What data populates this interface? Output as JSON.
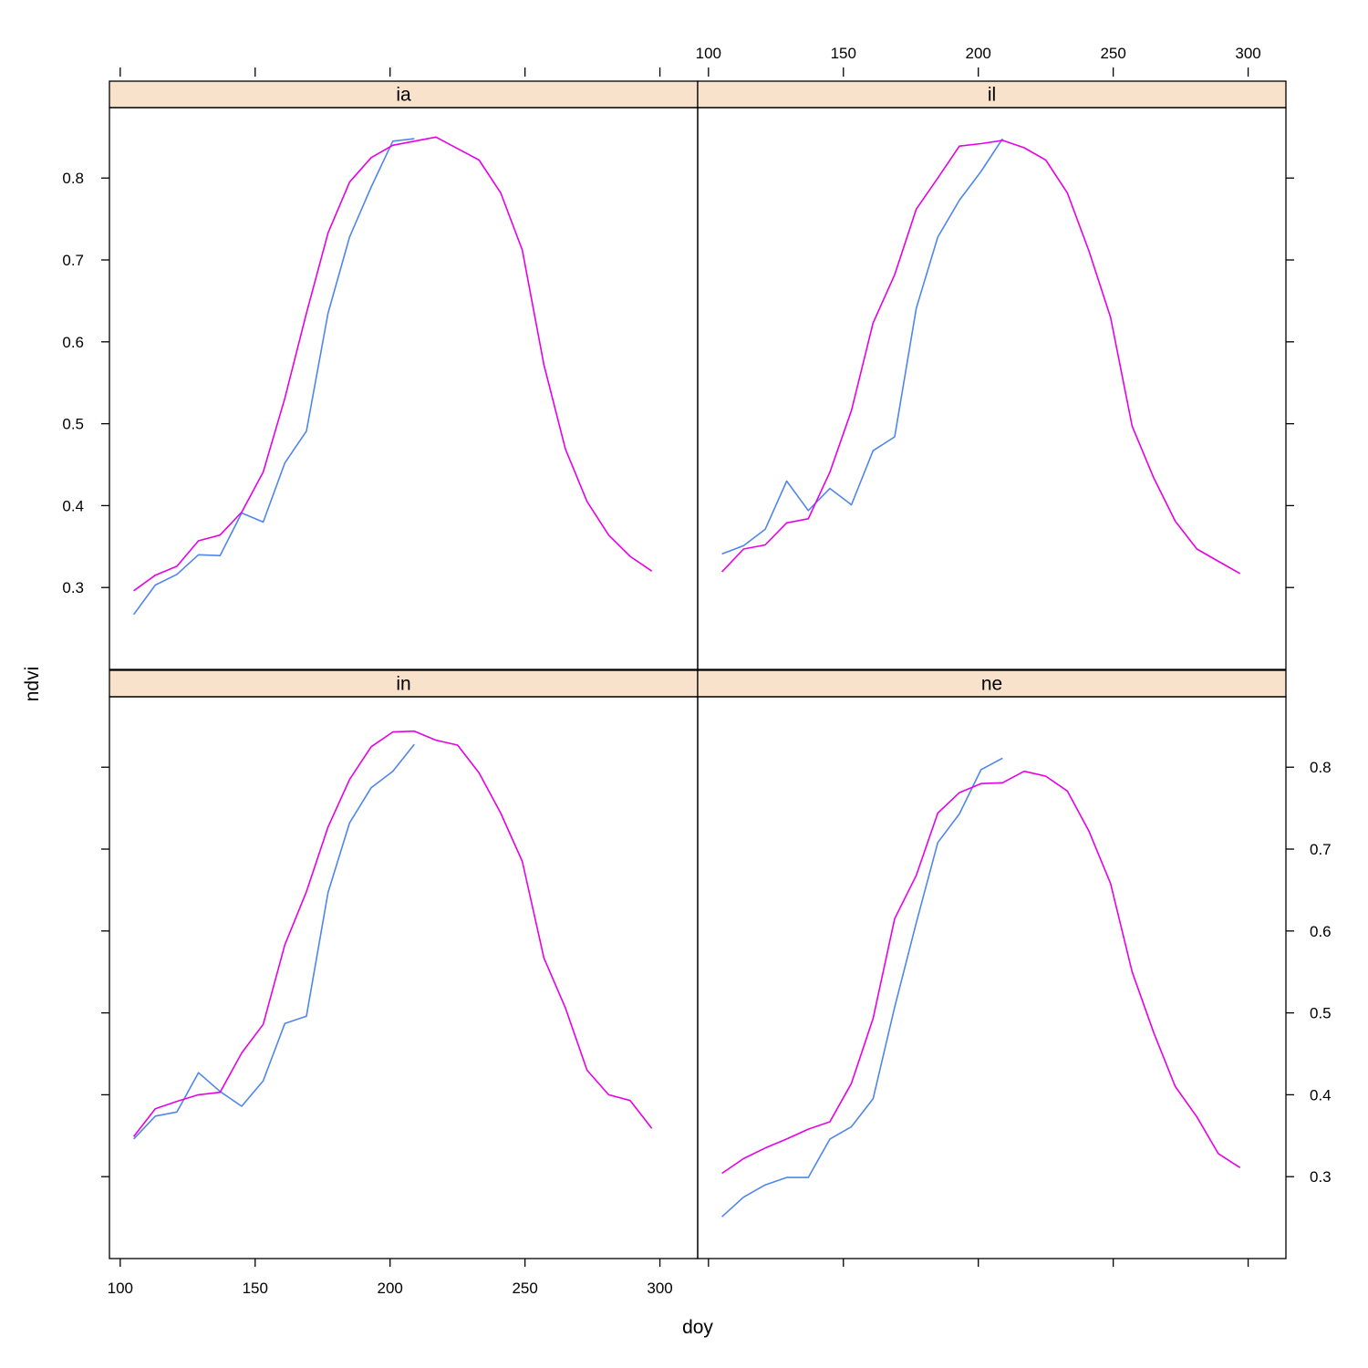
{
  "chart_data": {
    "type": "line",
    "xlabel": "doy",
    "ylabel": "ndvi",
    "xlim": [
      96,
      314
    ],
    "ylim": [
      0.2,
      0.886
    ],
    "x_ticks": [
      100,
      150,
      200,
      250,
      300
    ],
    "y_ticks": [
      0.3,
      0.4,
      0.5,
      0.6,
      0.7,
      0.8
    ],
    "colors": {
      "series_a": "#4f86ec",
      "series_b": "#e600e6",
      "strip_bg": "#f8e2cb",
      "frame": "#000000"
    },
    "panels": [
      {
        "strip": "ia",
        "series": [
          {
            "color": "#4f86ec",
            "x": [
              105,
              113,
              121,
              129,
              137,
              145,
              153,
              161,
              169,
              177,
              185,
              193,
              201,
              209
            ],
            "y": [
              0.267,
              0.303,
              0.316,
              0.34,
              0.339,
              0.391,
              0.38,
              0.452,
              0.491,
              0.635,
              0.728,
              0.789,
              0.845,
              0.848
            ]
          },
          {
            "color": "#e600e6",
            "x": [
              105,
              113,
              121,
              129,
              137,
              145,
              153,
              161,
              169,
              177,
              185,
              193,
              201,
              209,
              217,
              225,
              233,
              241,
              249,
              257,
              265,
              273,
              281,
              289,
              297
            ],
            "y": [
              0.296,
              0.315,
              0.326,
              0.357,
              0.364,
              0.392,
              0.441,
              0.531,
              0.635,
              0.733,
              0.795,
              0.825,
              0.84,
              0.845,
              0.85,
              0.836,
              0.822,
              0.782,
              0.712,
              0.572,
              0.469,
              0.405,
              0.364,
              0.338,
              0.32
            ]
          }
        ]
      },
      {
        "strip": "il",
        "series": [
          {
            "color": "#4f86ec",
            "x": [
              105,
              113,
              121,
              129,
              137,
              145,
              153,
              161,
              169,
              177,
              185,
              193,
              201,
              209
            ],
            "y": [
              0.341,
              0.351,
              0.371,
              0.43,
              0.394,
              0.421,
              0.401,
              0.467,
              0.484,
              0.641,
              0.728,
              0.773,
              0.808,
              0.848
            ]
          },
          {
            "color": "#e600e6",
            "x": [
              105,
              113,
              121,
              129,
              137,
              145,
              153,
              161,
              169,
              177,
              185,
              193,
              201,
              209,
              217,
              225,
              233,
              241,
              249,
              257,
              265,
              273,
              281,
              289,
              297
            ],
            "y": [
              0.319,
              0.347,
              0.352,
              0.379,
              0.384,
              0.441,
              0.516,
              0.623,
              0.682,
              0.762,
              0.8,
              0.839,
              0.842,
              0.846,
              0.837,
              0.822,
              0.782,
              0.711,
              0.63,
              0.497,
              0.434,
              0.381,
              0.347,
              0.332,
              0.317
            ]
          }
        ]
      },
      {
        "strip": "in",
        "series": [
          {
            "color": "#4f86ec",
            "x": [
              105,
              113,
              121,
              129,
              137,
              145,
              153,
              161,
              169,
              177,
              185,
              193,
              201,
              209
            ],
            "y": [
              0.346,
              0.374,
              0.379,
              0.427,
              0.404,
              0.386,
              0.417,
              0.487,
              0.496,
              0.647,
              0.732,
              0.775,
              0.795,
              0.828
            ]
          },
          {
            "color": "#e600e6",
            "x": [
              105,
              113,
              121,
              129,
              137,
              145,
              153,
              161,
              169,
              177,
              185,
              193,
              201,
              209,
              217,
              225,
              233,
              241,
              249,
              257,
              265,
              273,
              281,
              289,
              297
            ],
            "y": [
              0.349,
              0.383,
              0.392,
              0.4,
              0.403,
              0.451,
              0.486,
              0.583,
              0.648,
              0.727,
              0.785,
              0.825,
              0.843,
              0.844,
              0.833,
              0.827,
              0.793,
              0.744,
              0.685,
              0.567,
              0.506,
              0.43,
              0.4,
              0.393,
              0.359
            ]
          }
        ]
      },
      {
        "strip": "ne",
        "series": [
          {
            "color": "#4f86ec",
            "x": [
              105,
              113,
              121,
              129,
              137,
              145,
              153,
              161,
              169,
              177,
              185,
              193,
              201,
              209
            ],
            "y": [
              0.251,
              0.275,
              0.29,
              0.299,
              0.299,
              0.346,
              0.361,
              0.395,
              0.507,
              0.61,
              0.708,
              0.743,
              0.797,
              0.811
            ]
          },
          {
            "color": "#e600e6",
            "x": [
              105,
              113,
              121,
              129,
              137,
              145,
              153,
              161,
              169,
              177,
              185,
              193,
              201,
              209,
              217,
              225,
              233,
              241,
              249,
              257,
              265,
              273,
              281,
              289,
              297
            ],
            "y": [
              0.304,
              0.322,
              0.335,
              0.346,
              0.358,
              0.367,
              0.414,
              0.493,
              0.615,
              0.668,
              0.744,
              0.769,
              0.78,
              0.781,
              0.795,
              0.789,
              0.771,
              0.722,
              0.658,
              0.55,
              0.476,
              0.41,
              0.373,
              0.328,
              0.311
            ]
          }
        ]
      }
    ]
  }
}
